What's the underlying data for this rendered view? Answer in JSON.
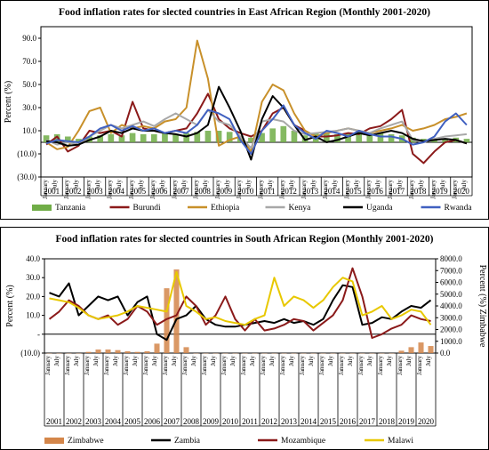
{
  "chart_data": [
    {
      "type": "line",
      "title": "Food inflation rates for slected countries in East African Region (Monthly 2001-2020)",
      "ylabel": "Percent (%)",
      "ylim": [
        -30,
        100
      ],
      "yticks": [
        "90.0",
        "70.0",
        "50.0",
        "30.0",
        "10.0",
        "(10.0)",
        "(30.0)"
      ],
      "ytick_values": [
        90,
        70,
        50,
        30,
        10,
        -10,
        -30
      ],
      "years": [
        "2001",
        "2002",
        "2003",
        "2004",
        "2005",
        "2006",
        "2007",
        "2008",
        "2009",
        "2010",
        "2011",
        "2012",
        "2013",
        "2014",
        "2015",
        "2016",
        "2017",
        "2018",
        "2019",
        "2020"
      ],
      "month_labels": [
        "January",
        "July"
      ],
      "x": [
        2001.0,
        2001.5,
        2002.0,
        2002.5,
        2003.0,
        2003.5,
        2004.0,
        2004.5,
        2005.0,
        2005.5,
        2006.0,
        2006.5,
        2007.0,
        2007.5,
        2008.0,
        2008.5,
        2009.0,
        2009.5,
        2010.0,
        2010.5,
        2011.0,
        2011.5,
        2012.0,
        2012.5,
        2013.0,
        2013.5,
        2014.0,
        2014.5,
        2015.0,
        2015.5,
        2016.0,
        2016.5,
        2017.0,
        2017.5,
        2018.0,
        2018.5,
        2019.0,
        2019.5,
        2020.0,
        2020.5
      ],
      "series": [
        {
          "name": "Tanzania",
          "type": "bar",
          "color": "#70ad47",
          "values": [
            6,
            7,
            5,
            3,
            5,
            6,
            7,
            6,
            8,
            7,
            7,
            8,
            7,
            8,
            9,
            10,
            10,
            9,
            5,
            4,
            8,
            12,
            14,
            10,
            6,
            8,
            8,
            7,
            8,
            9,
            9,
            8,
            7,
            6,
            4,
            3,
            2,
            3,
            4,
            3
          ]
        },
        {
          "name": "Burundi",
          "type": "line",
          "color": "#8b1a1a",
          "values": [
            -2,
            5,
            -8,
            -3,
            10,
            8,
            10,
            5,
            35,
            12,
            10,
            8,
            10,
            12,
            25,
            42,
            20,
            12,
            8,
            5,
            10,
            25,
            30,
            15,
            10,
            5,
            5,
            6,
            8,
            7,
            12,
            14,
            20,
            28,
            -10,
            -18,
            -8,
            0,
            2,
            -1
          ]
        },
        {
          "name": "Ethiopia",
          "type": "line",
          "color": "#c8902a",
          "values": [
            0,
            -6,
            -4,
            10,
            27,
            30,
            8,
            15,
            12,
            14,
            12,
            18,
            20,
            30,
            88,
            55,
            -3,
            2,
            5,
            -8,
            35,
            50,
            45,
            25,
            10,
            5,
            8,
            10,
            12,
            10,
            8,
            10,
            12,
            15,
            10,
            12,
            15,
            20,
            22,
            25
          ]
        },
        {
          "name": "Kenya",
          "type": "line",
          "color": "#a8a8a8",
          "values": [
            2,
            -2,
            0,
            -2,
            5,
            10,
            15,
            12,
            15,
            18,
            14,
            20,
            25,
            20,
            15,
            28,
            18,
            15,
            5,
            -5,
            18,
            20,
            18,
            10,
            7,
            8,
            9,
            10,
            12,
            10,
            8,
            12,
            15,
            18,
            2,
            0,
            3,
            5,
            6,
            7
          ]
        },
        {
          "name": "Uganda",
          "type": "line",
          "color": "#000000",
          "values": [
            1,
            0,
            -3,
            -2,
            2,
            5,
            10,
            8,
            12,
            10,
            10,
            8,
            7,
            5,
            8,
            15,
            48,
            30,
            10,
            -15,
            20,
            40,
            30,
            15,
            2,
            5,
            0,
            2,
            5,
            8,
            6,
            8,
            10,
            8,
            3,
            1,
            2,
            3,
            2,
            -1
          ]
        },
        {
          "name": "Rwanda",
          "type": "line",
          "color": "#4060c0",
          "values": [
            -1,
            2,
            1,
            0,
            5,
            12,
            15,
            10,
            14,
            10,
            12,
            8,
            10,
            8,
            15,
            28,
            25,
            20,
            2,
            -10,
            10,
            20,
            32,
            15,
            8,
            3,
            10,
            8,
            5,
            10,
            7,
            5,
            5,
            3,
            -2,
            0,
            5,
            18,
            25,
            15
          ]
        }
      ],
      "legend": [
        "Tanzania",
        "Burundi",
        "Ethiopia",
        "Kenya",
        "Uganda",
        "Rwanda"
      ],
      "legend_position": "bottom"
    },
    {
      "type": "line",
      "title": "Food inflation rates for slected countries in South African Region (Monthly 2001-2020)",
      "ylabel": "Percent (%)",
      "y2label": "Percent (%) Zimbabwe",
      "ylim": [
        -10,
        40
      ],
      "y2lim": [
        0,
        8000
      ],
      "yticks": [
        "40.0",
        "30.0",
        "20.0",
        "10.0",
        "-",
        "(10.0)"
      ],
      "ytick_values": [
        40,
        30,
        20,
        10,
        0,
        -10
      ],
      "y2ticks": [
        "8000.0",
        "7000.0",
        "6000.0",
        "5000.0",
        "4000.0",
        "3000.0",
        "2000.0",
        "1000.0",
        "0.0"
      ],
      "y2tick_values": [
        8000,
        7000,
        6000,
        5000,
        4000,
        3000,
        2000,
        1000,
        0
      ],
      "years": [
        "2001",
        "2002",
        "2003",
        "2004",
        "2005",
        "2006",
        "2007",
        "2008",
        "2009",
        "2010",
        "2011",
        "2012",
        "2013",
        "2014",
        "2015",
        "2016",
        "2017",
        "2018",
        "2019",
        "2020"
      ],
      "month_labels": [
        "January",
        "July"
      ],
      "x": [
        2001.0,
        2001.5,
        2002.0,
        2002.5,
        2003.0,
        2003.5,
        2004.0,
        2004.5,
        2005.0,
        2005.5,
        2006.0,
        2006.5,
        2007.0,
        2007.5,
        2008.0,
        2008.5,
        2009.0,
        2009.5,
        2010.0,
        2010.5,
        2011.0,
        2011.5,
        2012.0,
        2012.5,
        2013.0,
        2013.5,
        2014.0,
        2014.5,
        2015.0,
        2015.5,
        2016.0,
        2016.5,
        2017.0,
        2017.5,
        2018.0,
        2018.5,
        2019.0,
        2019.5,
        2020.0,
        2020.5
      ],
      "series": [
        {
          "name": "Zimbabwe",
          "type": "bar",
          "axis": "right",
          "color": "#d4864a",
          "values": [
            0,
            0,
            0,
            0,
            100,
            300,
            300,
            250,
            150,
            100,
            150,
            800,
            5500,
            7100,
            500,
            0,
            0,
            0,
            0,
            0,
            0,
            0,
            0,
            0,
            0,
            0,
            0,
            0,
            0,
            0,
            0,
            0,
            0,
            0,
            0,
            0,
            200,
            500,
            900,
            600
          ]
        },
        {
          "name": "Zambia",
          "type": "line",
          "color": "#000000",
          "values": [
            22,
            20,
            27,
            10,
            15,
            20,
            18,
            20,
            10,
            17,
            20,
            0,
            -3,
            8,
            10,
            15,
            8,
            5,
            4,
            4,
            5,
            6,
            7,
            6,
            8,
            6,
            7,
            5,
            8,
            18,
            26,
            25,
            5,
            6,
            9,
            8,
            12,
            15,
            14,
            18
          ]
        },
        {
          "name": "Mozambique",
          "type": "line",
          "color": "#8b1a1a",
          "values": [
            8,
            12,
            18,
            15,
            10,
            8,
            10,
            5,
            8,
            15,
            12,
            5,
            8,
            10,
            20,
            15,
            5,
            10,
            20,
            8,
            2,
            8,
            2,
            3,
            5,
            8,
            7,
            2,
            6,
            10,
            18,
            35,
            20,
            -2,
            0,
            3,
            5,
            10,
            8,
            7
          ]
        },
        {
          "name": "Malawi",
          "type": "line",
          "color": "#e8c800",
          "values": [
            19,
            18,
            17,
            14,
            10,
            8,
            9,
            10,
            12,
            15,
            14,
            13,
            12,
            33,
            15,
            12,
            8,
            9,
            7,
            6,
            5,
            8,
            10,
            30,
            15,
            20,
            18,
            14,
            18,
            25,
            30,
            28,
            10,
            12,
            15,
            8,
            10,
            13,
            12,
            5
          ]
        }
      ],
      "legend": [
        "Zimbabwe",
        "Zambia",
        "Mozambique",
        "Malawi"
      ],
      "legend_position": "bottom"
    }
  ]
}
